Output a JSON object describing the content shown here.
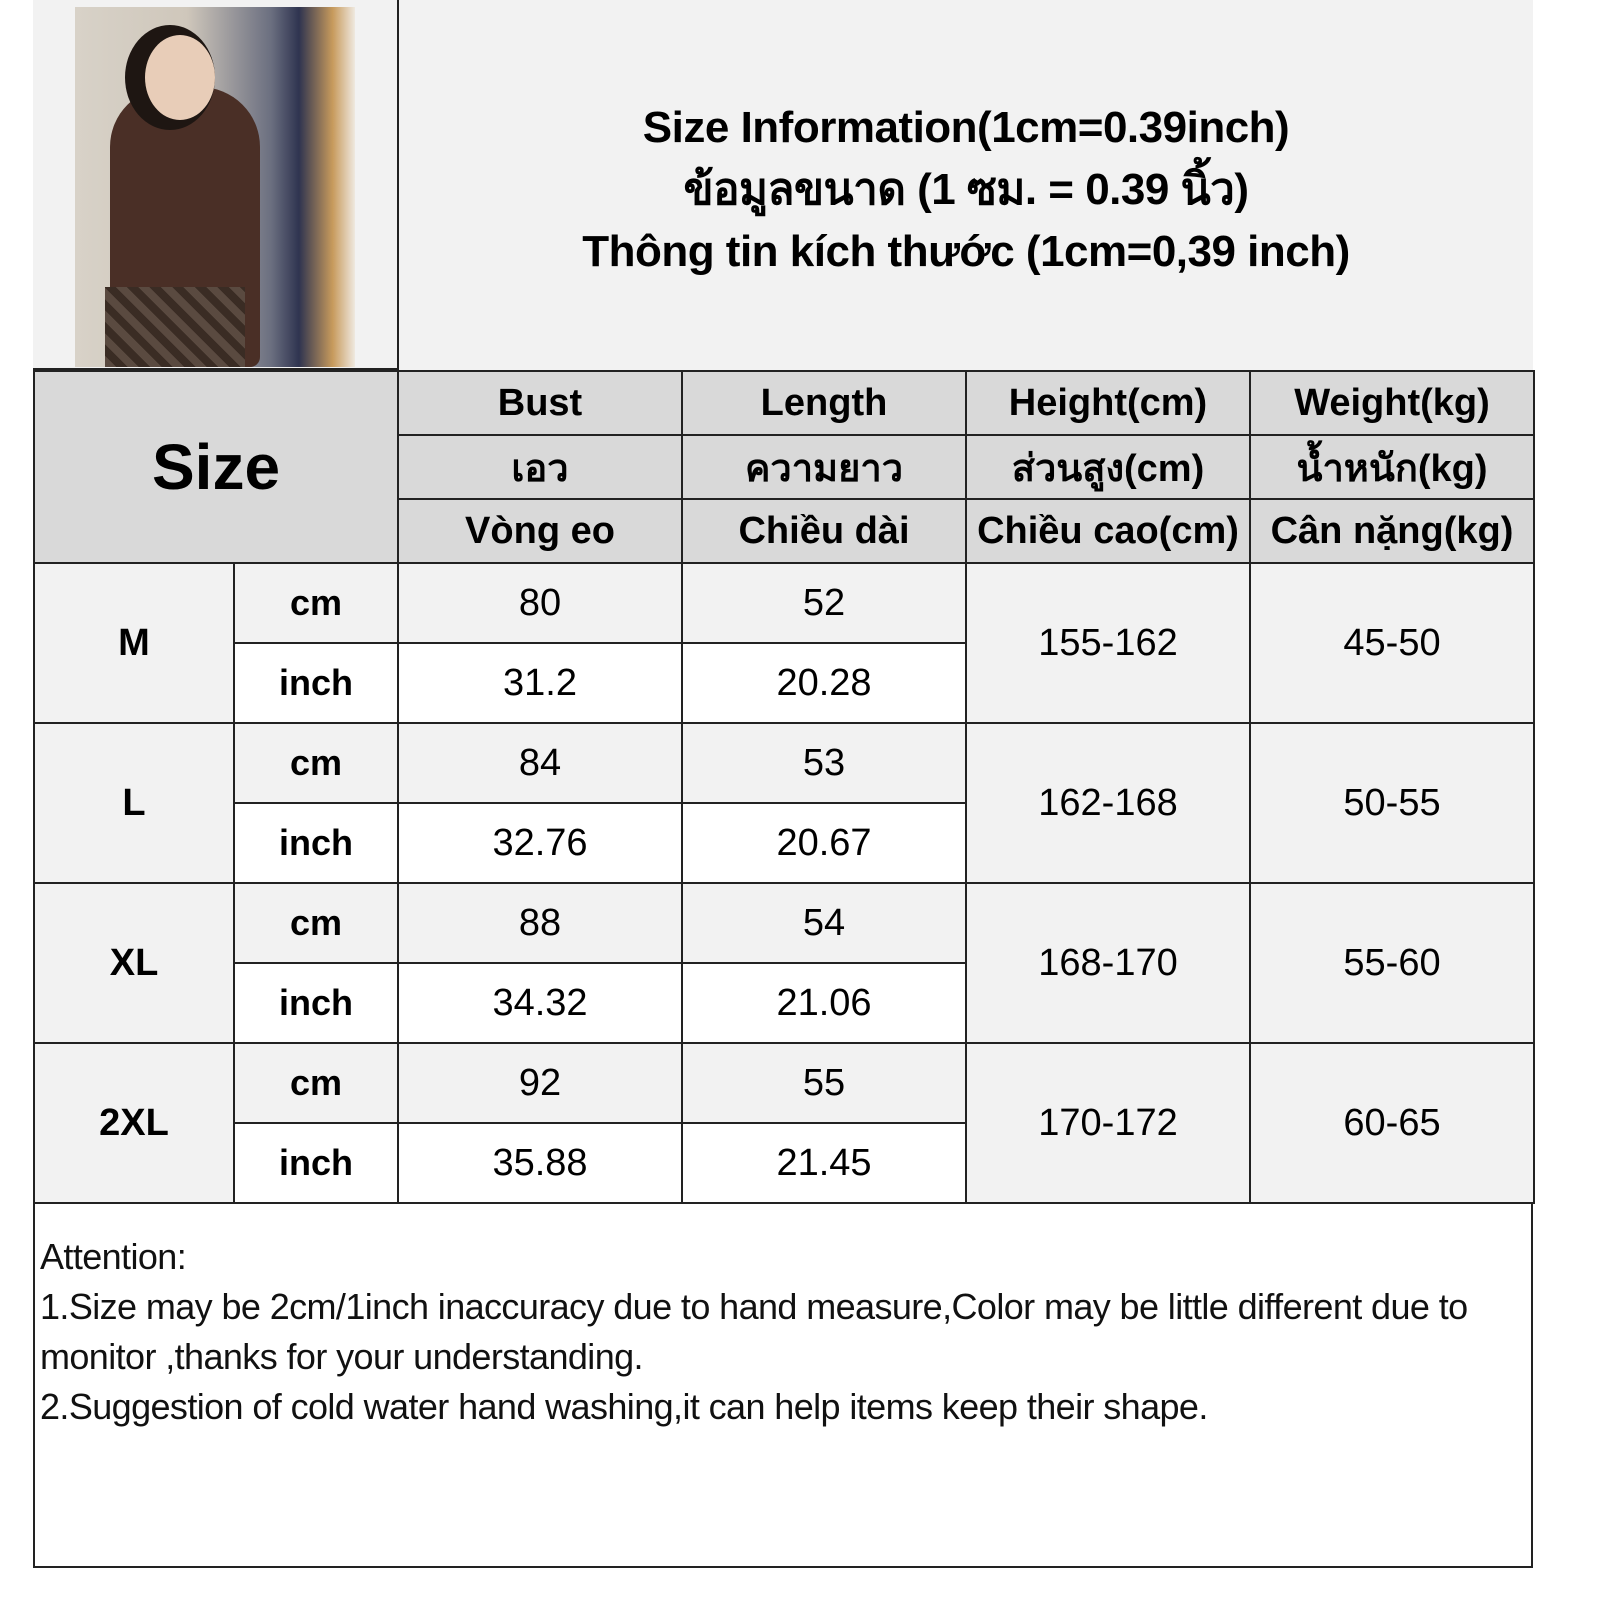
{
  "header": {
    "title_lines": [
      "Size Information(1cm=0.39inch)",
      "ข้อมูลขนาด (1 ซม. = 0.39 นิ้ว)",
      "Thông tin kích thước (1cm=0,39 inch)"
    ]
  },
  "table": {
    "size_label": "Size",
    "columns": [
      [
        "Bust",
        "เอว",
        "Vòng eo"
      ],
      [
        "Length",
        "ความยาว",
        "Chiều dài"
      ],
      [
        "Height(cm)",
        "ส่วนสูง(cm)",
        "Chiều cao(cm)"
      ],
      [
        "Weight(kg)",
        "น้ำหนัก(kg)",
        "Cân nặng(kg)"
      ]
    ],
    "unit_cm": "cm",
    "unit_inch": "inch",
    "rows": [
      {
        "size": "M",
        "bust_cm": "80",
        "length_cm": "52",
        "bust_inch": "31.2",
        "length_inch": "20.28",
        "height": "155-162",
        "weight": "45-50"
      },
      {
        "size": "L",
        "bust_cm": "84",
        "length_cm": "53",
        "bust_inch": "32.76",
        "length_inch": "20.67",
        "height": "162-168",
        "weight": "50-55"
      },
      {
        "size": "XL",
        "bust_cm": "88",
        "length_cm": "54",
        "bust_inch": "34.32",
        "length_inch": "21.06",
        "height": "168-170",
        "weight": "55-60"
      },
      {
        "size": "2XL",
        "bust_cm": "92",
        "length_cm": "55",
        "bust_inch": "35.88",
        "length_inch": "21.45",
        "height": "170-172",
        "weight": "60-65"
      }
    ]
  },
  "notes": {
    "heading": "Attention:",
    "lines": [
      "1.Size may be 2cm/1inch inaccuracy due to hand measure,Color may be little different due to monitor ,thanks for your understanding.",
      "2.Suggestion of cold water hand washing,it can help items keep their shape."
    ]
  },
  "colors": {
    "header_bg": "#d9d9d9",
    "light_bg": "#f2f2f2",
    "border": "#222222"
  }
}
